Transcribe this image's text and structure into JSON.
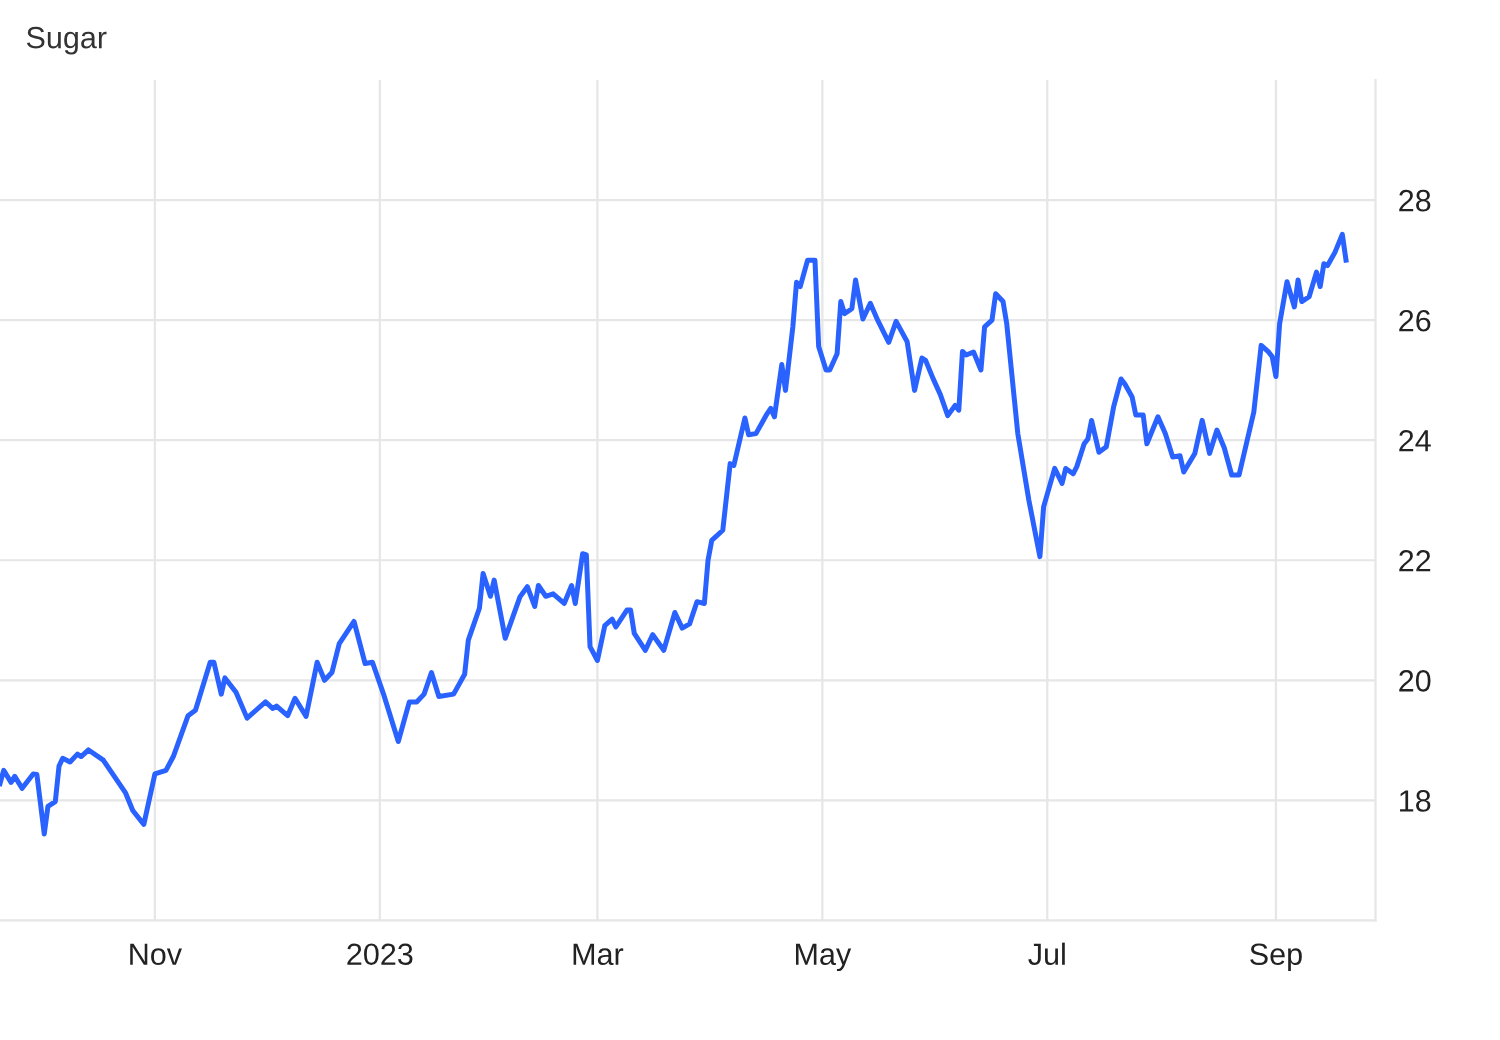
{
  "chart_data": {
    "type": "line",
    "title": "Sugar",
    "x": [
      "2022-09-20",
      "2022-09-21",
      "2022-09-23",
      "2022-09-24",
      "2022-09-26",
      "2022-09-29",
      "2022-09-30",
      "2022-10-02",
      "2022-10-03",
      "2022-10-05",
      "2022-10-06",
      "2022-10-07",
      "2022-10-09",
      "2022-10-11",
      "2022-10-12",
      "2022-10-14",
      "2022-10-18",
      "2022-10-21",
      "2022-10-24",
      "2022-10-26",
      "2022-10-29",
      "2022-11-01",
      "2022-11-04",
      "2022-11-06",
      "2022-11-10",
      "2022-11-12",
      "2022-11-16",
      "2022-11-17",
      "2022-11-19",
      "2022-11-20",
      "2022-11-23",
      "2022-11-26",
      "2022-12-01",
      "2022-12-03",
      "2022-12-04",
      "2022-12-07",
      "2022-12-09",
      "2022-12-12",
      "2022-12-15",
      "2022-12-17",
      "2022-12-19",
      "2022-12-21",
      "2022-12-25",
      "2022-12-28",
      "2022-12-30",
      "2023-01-02",
      "2023-01-06",
      "2023-01-09",
      "2023-01-11",
      "2023-01-13",
      "2023-01-15",
      "2023-01-17",
      "2023-01-21",
      "2023-01-24",
      "2023-01-25",
      "2023-01-28",
      "2023-01-29",
      "2023-01-31",
      "2023-02-01",
      "2023-02-04",
      "2023-02-08",
      "2023-02-10",
      "2023-02-12",
      "2023-02-13",
      "2023-02-15",
      "2023-02-17",
      "2023-02-20",
      "2023-02-22",
      "2023-02-23",
      "2023-02-25",
      "2023-02-26",
      "2023-02-27",
      "2023-03-01",
      "2023-03-03",
      "2023-03-05",
      "2023-03-06",
      "2023-03-09",
      "2023-03-10",
      "2023-03-11",
      "2023-03-14",
      "2023-03-16",
      "2023-03-19",
      "2023-03-22",
      "2023-03-24",
      "2023-03-26",
      "2023-03-28",
      "2023-03-30",
      "2023-03-31",
      "2023-04-01",
      "2023-04-04",
      "2023-04-06",
      "2023-04-07",
      "2023-04-10",
      "2023-04-11",
      "2023-04-13",
      "2023-04-16",
      "2023-04-17",
      "2023-04-18",
      "2023-04-20",
      "2023-04-21",
      "2023-04-23",
      "2023-04-24",
      "2023-04-25",
      "2023-04-27",
      "2023-04-29",
      "2023-04-30",
      "2023-05-02",
      "2023-05-03",
      "2023-05-05",
      "2023-05-06",
      "2023-05-07",
      "2023-05-09",
      "2023-05-10",
      "2023-05-12",
      "2023-05-14",
      "2023-05-16",
      "2023-05-19",
      "2023-05-21",
      "2023-05-24",
      "2023-05-26",
      "2023-05-28",
      "2023-05-29",
      "2023-05-31",
      "2023-06-02",
      "2023-06-04",
      "2023-06-06",
      "2023-06-07",
      "2023-06-08",
      "2023-06-09",
      "2023-06-11",
      "2023-06-13",
      "2023-06-14",
      "2023-06-16",
      "2023-06-17",
      "2023-06-19",
      "2023-06-20",
      "2023-06-23",
      "2023-06-26",
      "2023-06-29",
      "2023-06-30",
      "2023-07-03",
      "2023-07-05",
      "2023-07-06",
      "2023-07-08",
      "2023-07-09",
      "2023-07-11",
      "2023-07-12",
      "2023-07-13",
      "2023-07-15",
      "2023-07-17",
      "2023-07-19",
      "2023-07-21",
      "2023-07-22",
      "2023-07-24",
      "2023-07-25",
      "2023-07-27",
      "2023-07-28",
      "2023-07-31",
      "2023-08-02",
      "2023-08-04",
      "2023-08-06",
      "2023-08-07",
      "2023-08-10",
      "2023-08-12",
      "2023-08-14",
      "2023-08-16",
      "2023-08-18",
      "2023-08-20",
      "2023-08-22",
      "2023-08-26",
      "2023-08-28",
      "2023-08-30",
      "2023-08-31",
      "2023-09-01",
      "2023-09-02",
      "2023-09-04",
      "2023-09-06",
      "2023-09-07",
      "2023-09-08",
      "2023-09-10",
      "2023-09-12",
      "2023-09-13",
      "2023-09-14",
      "2023-09-15",
      "2023-09-17",
      "2023-09-19",
      "2023-09-20"
    ],
    "series": [
      {
        "color": "#2962ff",
        "values": [
          18.28,
          18.5,
          18.3,
          18.4,
          18.2,
          18.44,
          18.43,
          17.44,
          17.9,
          17.98,
          18.57,
          18.7,
          18.64,
          18.77,
          18.73,
          18.84,
          18.67,
          18.4,
          18.13,
          17.83,
          17.6,
          18.44,
          18.5,
          18.73,
          19.41,
          19.5,
          20.3,
          20.3,
          19.77,
          20.04,
          19.8,
          19.37,
          19.64,
          19.53,
          19.57,
          19.41,
          19.7,
          19.4,
          20.3,
          20.0,
          20.13,
          20.61,
          20.98,
          20.28,
          20.3,
          19.77,
          18.98,
          19.64,
          19.64,
          19.77,
          20.13,
          19.73,
          19.77,
          20.1,
          20.67,
          21.2,
          21.78,
          21.4,
          21.67,
          20.7,
          21.39,
          21.56,
          21.23,
          21.58,
          21.4,
          21.44,
          21.28,
          21.58,
          21.28,
          22.11,
          22.09,
          20.56,
          20.33,
          20.91,
          21.02,
          20.89,
          21.17,
          21.17,
          20.78,
          20.5,
          20.76,
          20.5,
          21.13,
          20.87,
          20.94,
          21.31,
          21.28,
          22.0,
          22.33,
          22.5,
          23.61,
          23.58,
          24.37,
          24.09,
          24.11,
          24.44,
          24.53,
          24.39,
          25.26,
          24.83,
          25.89,
          26.63,
          26.56,
          27.0,
          27.0,
          25.56,
          25.17,
          25.17,
          25.44,
          26.31,
          26.11,
          26.19,
          26.67,
          26.02,
          26.28,
          26.0,
          25.63,
          25.98,
          25.64,
          24.83,
          25.37,
          25.33,
          25.03,
          24.76,
          24.41,
          24.58,
          24.5,
          25.48,
          25.42,
          25.47,
          25.17,
          25.89,
          26.0,
          26.44,
          26.31,
          25.94,
          24.11,
          23.0,
          22.06,
          22.89,
          23.53,
          23.28,
          23.53,
          23.44,
          23.56,
          23.94,
          24.02,
          24.33,
          23.8,
          23.89,
          24.56,
          25.02,
          24.94,
          24.72,
          24.42,
          24.42,
          23.94,
          24.39,
          24.11,
          23.72,
          23.74,
          23.47,
          23.78,
          24.33,
          23.78,
          24.17,
          23.87,
          23.42,
          23.42,
          24.47,
          25.58,
          25.47,
          25.39,
          25.06,
          25.94,
          26.64,
          26.22,
          26.67,
          26.31,
          26.39,
          26.8,
          26.56,
          26.94,
          26.91,
          27.13,
          27.43,
          27.0
        ]
      }
    ],
    "xlim": [
      "2022-09-20",
      "2023-09-28"
    ],
    "xticks": [
      {
        "value": "2022-11-01",
        "label": "Nov"
      },
      {
        "value": "2023-01-01",
        "label": "2023"
      },
      {
        "value": "2023-03-01",
        "label": "Mar"
      },
      {
        "value": "2023-05-01",
        "label": "May"
      },
      {
        "value": "2023-07-01",
        "label": "Jul"
      },
      {
        "value": "2023-09-01",
        "label": "Sep"
      }
    ],
    "ylim": [
      16,
      30
    ],
    "yticks": [
      18,
      20,
      22,
      24,
      26,
      28
    ],
    "grid": true,
    "marker": "none",
    "line_style": "solid"
  }
}
